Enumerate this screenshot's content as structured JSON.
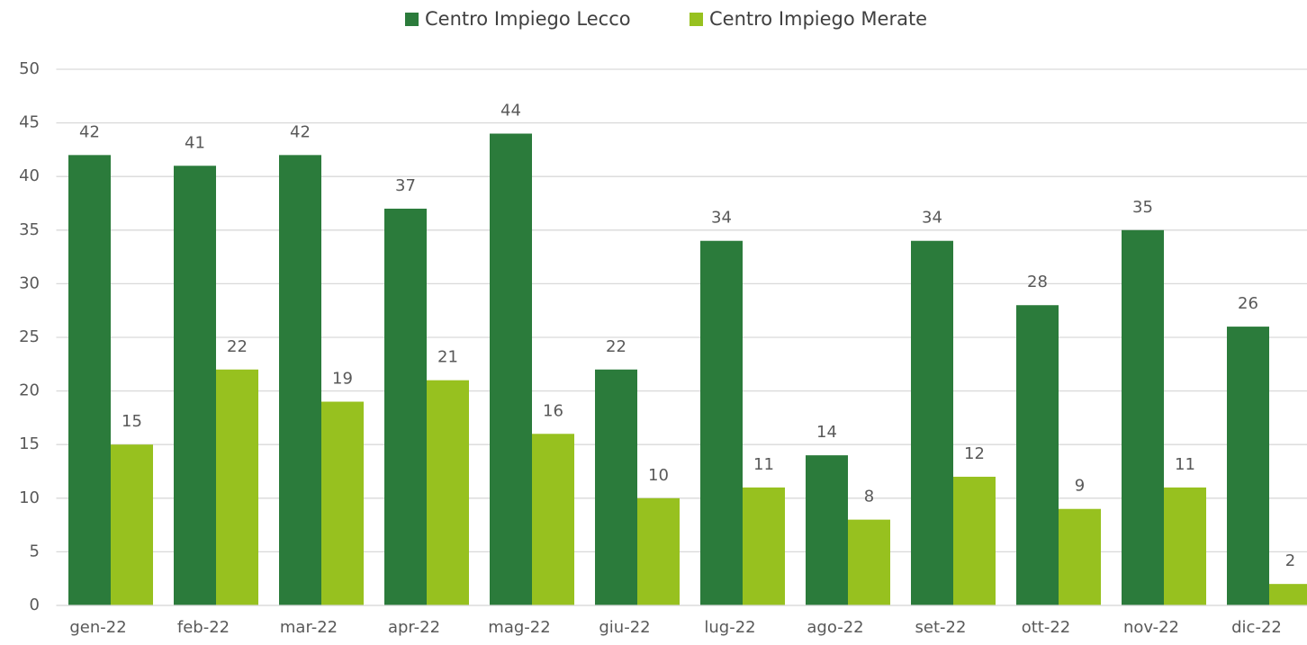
{
  "chart_data": {
    "type": "bar",
    "categories": [
      "gen-22",
      "feb-22",
      "mar-22",
      "apr-22",
      "mag-22",
      "giu-22",
      "lug-22",
      "ago-22",
      "set-22",
      "ott-22",
      "nov-22",
      "dic-22"
    ],
    "series": [
      {
        "name": "Centro Impiego Lecco",
        "color": "#2b7b3b",
        "values": [
          42,
          41,
          42,
          37,
          44,
          22,
          34,
          14,
          34,
          28,
          35,
          26
        ]
      },
      {
        "name": "Centro Impiego Merate",
        "color": "#97c11f",
        "values": [
          15,
          22,
          19,
          21,
          16,
          10,
          11,
          8,
          12,
          9,
          11,
          2
        ]
      }
    ],
    "ylim": [
      0,
      50
    ],
    "yticks": [
      0,
      5,
      10,
      15,
      20,
      25,
      30,
      35,
      40,
      45,
      50
    ],
    "grid": true,
    "legend": "top"
  }
}
